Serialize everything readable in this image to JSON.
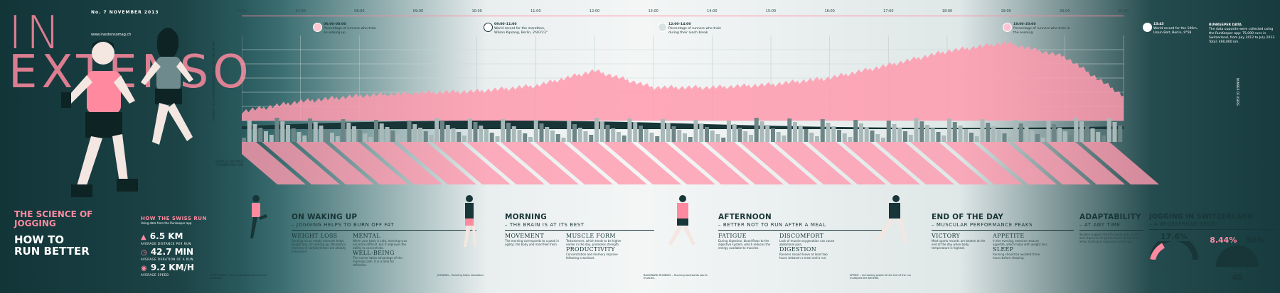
{
  "brand": {
    "title_line1": "IN",
    "title_line2": "EXTENSO",
    "issue": "No. 7  NOVEMBER 2013",
    "site": "www.inextensomag.ch"
  },
  "cover": {
    "science": "THE SCIENCE OF JOGGING",
    "headline": "HOW TO RUN BETTER"
  },
  "swiss_stats": {
    "title": "HOW THE SWISS RUN",
    "subtitle": "Using data from the Runkeeper app",
    "items": [
      {
        "icon": "distance-icon",
        "value": "6.5 KM",
        "label": "AVERAGE DISTANCE PER RUN"
      },
      {
        "icon": "clock-icon",
        "value": "42.7 MIN",
        "label": "AVERAGE DURATION OF A RUN"
      },
      {
        "icon": "speed-icon",
        "value": "9.2 KM/H",
        "label": "AVERAGE SPEED"
      }
    ]
  },
  "hours": [
    "06:00",
    "07:00",
    "08:00",
    "09:00",
    "10:00",
    "11:00",
    "12:00",
    "13:00",
    "14:00",
    "15:00",
    "16:00",
    "17:00",
    "18:00",
    "19:00",
    "20:00",
    "21:00"
  ],
  "events": [
    {
      "time": "06:00–08:00",
      "text": "Percentage of runners who train on waking up"
    },
    {
      "time": "09:00–11:00",
      "text": "World record for the marathon, Wilson Kipsang, Berlin, 2h03'23\""
    },
    {
      "time": "12:00–14:00",
      "text": "Percentage of runners who train during their lunch break"
    },
    {
      "time": "18:00–20:00",
      "text": "Percentage of runners who train in the evening"
    },
    {
      "time": "15:45",
      "text": "World record for the 100m, Usain Bolt, Berlin, 9\"58"
    }
  ],
  "survey": {
    "title": "RUNKEEPER DATA",
    "text": "The data opposite were collected using the RunKeeper app: 75,000 runs in Switzerland, from July 2012 to July 2013. Total: 490,000 km."
  },
  "axes": {
    "left": "NUMBER OF JOGGERS DEPENDING ON THE TIME OF DAY",
    "right": "NUMBER OF USERS",
    "avg": "AVERAGE DISTANCE COVERED PER RUN"
  },
  "sections": [
    {
      "heading": "ON WAKING UP",
      "sub": "– JOGGING HELPS TO BURN OFF FAT",
      "cols": [
        {
          "head": "WEIGHT LOSS",
          "text": "Running on an empty stomach helps weight loss. On waking up, the body's reserves of carbohydrates are already exhausted."
        },
        {
          "head": "MENTAL",
          "text": "When your body is cold, morning runs are more difficult, but it improves the ability to concentrate."
        },
        {
          "head": "WELL-BEING",
          "text": "The runner takes advantage of the morning calm. It is a time for reflection."
        }
      ]
    },
    {
      "heading": "MORNING",
      "sub": "– THE BRAIN IS AT ITS BEST",
      "cols": [
        {
          "head": "MOVEMENT",
          "text": "The morning corresponds to a peak in agility; the body and mind feel fresh."
        },
        {
          "head": "MUSCLE FORM",
          "text": "Testosterone, which tends to be higher earlier in the day, promotes strength."
        },
        {
          "head": "PRODUCTIVITY",
          "text": "Concentration and memory improve following a workout."
        }
      ]
    },
    {
      "heading": "AFTERNOON",
      "sub": "– BETTER NOT TO RUN AFTER A MEAL",
      "cols": [
        {
          "head": "FATIGUE",
          "text": "During digestion, blood flows to the digestive system, which reduces the energy available to muscles."
        },
        {
          "head": "DISCOMFORT",
          "text": "Lack of muscle oxygenation can cause abdominal pain."
        },
        {
          "head": "DIGESTION",
          "text": "Runners should leave at least two hours between a meal and a run."
        }
      ]
    },
    {
      "heading": "END OF THE DAY",
      "sub": "– MUSCULAR PERFORMANCE PEAKS",
      "cols": [
        {
          "head": "VICTORY",
          "text": "Most sports records are beaten at the end of the day when body temperature is highest."
        },
        {
          "head": "APPETITE",
          "text": "In the evening, exercise reduces appetite, which helps with weight loss."
        },
        {
          "head": "SLEEP",
          "text": "Running should be avoided three hours before sleeping."
        }
      ]
    },
    {
      "heading": "ADAPTABILITY",
      "sub": "– AT ANY TIME",
      "cols": [
        {
          "head": "",
          "text": "Studies suggest that the body gets used to and improves its performance at the time when training is regularly carried out."
        }
      ]
    },
    {
      "heading": "JOGGING IN SWITZERLAND",
      "sub": "– A WIDESPREAD SPORT",
      "cols": [
        {
          "head": "",
          "text": "Percentage of the population that goes jogging"
        }
      ]
    }
  ],
  "jogging_stats": {
    "pct_population": "17.6%",
    "pct_population_label": "PERCENTAGE OF THE POPULATION THAT GOES JOGGING",
    "female": "8.44%",
    "male": "56%",
    "age_label": "AVERAGE AGE",
    "age": "40"
  },
  "captions": [
    "STRETCHING – Daily stretching exercises are advisable.",
    "JOGGING – Running helps relaxation.",
    "BACKWARD RUNNING – Running backwards works muscles.",
    "SPRINT – Increasing speed at the end of the run multiplies the benefits."
  ],
  "chart_data": {
    "type": "area",
    "x": [
      "06:00",
      "07:00",
      "08:00",
      "09:00",
      "10:00",
      "11:00",
      "12:00",
      "13:00",
      "14:00",
      "15:00",
      "16:00",
      "17:00",
      "18:00",
      "19:00",
      "20:00",
      "21:00"
    ],
    "series": [
      {
        "values": [
          12,
          30,
          40,
          45,
          48,
          58,
          85,
          55,
          55,
          60,
          72,
          95,
          120,
          135,
          110,
          40
        ]
      }
    ],
    "colors": {
      "area": "#ff9aae",
      "skyline": "#8fa3a3"
    }
  }
}
